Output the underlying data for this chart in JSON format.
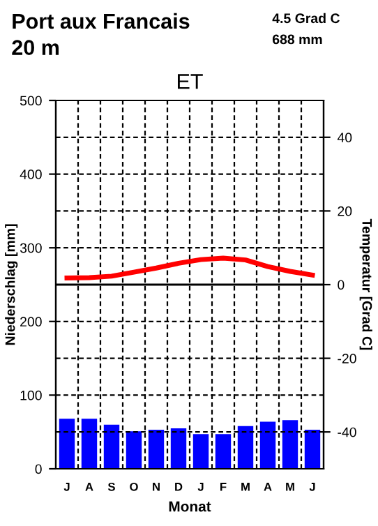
{
  "chart_data": {
    "type": "bar",
    "title": "ET",
    "annotations": [
      "Port aux Francais",
      "20 m",
      "4.5 Grad C",
      "688 mm"
    ],
    "xlabel": "Monat",
    "ylabel": "Niederschlag [mm]",
    "y2label": "Temperatur [Grad C]",
    "categories": [
      "J",
      "A",
      "S",
      "O",
      "N",
      "D",
      "J",
      "F",
      "M",
      "A",
      "M",
      "J"
    ],
    "series": [
      {
        "color": "#0000ff",
        "values": [
          68,
          68,
          60,
          51,
          53,
          55,
          47,
          47,
          58,
          64,
          66,
          53
        ]
      },
      {
        "type": "line",
        "axis": "y2",
        "color": "#ff0000",
        "values": [
          1.8,
          1.9,
          2.3,
          3.4,
          4.5,
          5.8,
          6.8,
          7.2,
          6.7,
          4.9,
          3.6,
          2.6
        ]
      }
    ],
    "ylim": [
      0,
      500
    ],
    "yticks": [
      0,
      100,
      200,
      300,
      400,
      500
    ],
    "y2lim": [
      -50,
      50
    ],
    "y2ticks": [
      -40,
      -20,
      0,
      20,
      40
    ],
    "ref_lines": [
      {
        "axis": "y2",
        "value": 0,
        "color": "#000000",
        "line_style": "solid"
      }
    ],
    "grid": true,
    "marker": "none",
    "line_style": "solid"
  }
}
